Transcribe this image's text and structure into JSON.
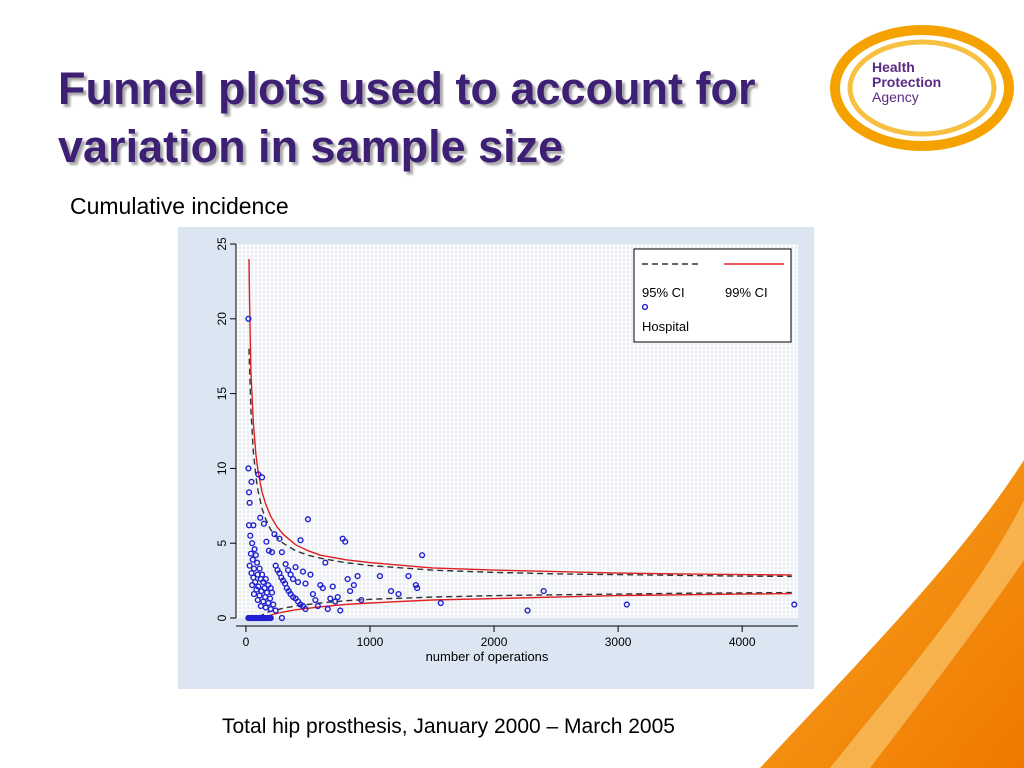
{
  "slide": {
    "title": "Funnel plots used to account for variation in sample size",
    "subtitle": "Cumulative incidence",
    "caption": "Total hip prosthesis, January 2000 – March 2005"
  },
  "logo": {
    "line1": "Health",
    "line2": "Protection",
    "line3": "Agency"
  },
  "colors": {
    "title": "#3d1f73",
    "panel": "#dce6f2",
    "accent_orange": "#f28c00",
    "ci99": "#e02020",
    "ci95": "#333333",
    "hospital": "#2020d0"
  },
  "chart_data": {
    "type": "scatter",
    "title": "",
    "xlabel": "number of operations",
    "ylabel": "",
    "xlim": [
      -80,
      4450
    ],
    "ylim": [
      0,
      25
    ],
    "xticks": [
      0,
      1000,
      2000,
      3000,
      4000
    ],
    "yticks": [
      0,
      5,
      10,
      15,
      20,
      25
    ],
    "grid": true,
    "legend": {
      "placement": "top-right",
      "entries": [
        {
          "label": "95% CI",
          "style": "dashed",
          "color": "#333333"
        },
        {
          "label": "99% CI",
          "style": "solid",
          "color": "#e02020"
        },
        {
          "label": "Hospital",
          "style": "point",
          "color": "#2020d0"
        }
      ]
    },
    "reference_rate": 2.2,
    "series": [
      {
        "name": "95% CI",
        "style": "dashed",
        "upper": [
          [
            25,
            18.0
          ],
          [
            40,
            13.9
          ],
          [
            60,
            11.1
          ],
          [
            80,
            9.5
          ],
          [
            100,
            8.4
          ],
          [
            130,
            7.3
          ],
          [
            160,
            6.6
          ],
          [
            200,
            5.9
          ],
          [
            250,
            5.4
          ],
          [
            300,
            5.0
          ],
          [
            400,
            4.5
          ],
          [
            500,
            4.2
          ],
          [
            600,
            4.0
          ],
          [
            800,
            3.7
          ],
          [
            1000,
            3.5
          ],
          [
            1500,
            3.2
          ],
          [
            2000,
            3.05
          ],
          [
            2500,
            2.95
          ],
          [
            3000,
            2.9
          ],
          [
            3500,
            2.85
          ],
          [
            4000,
            2.8
          ],
          [
            4400,
            2.78
          ]
        ],
        "lower": [
          [
            100,
            0.1
          ],
          [
            130,
            0.2
          ],
          [
            160,
            0.35
          ],
          [
            200,
            0.45
          ],
          [
            250,
            0.55
          ],
          [
            300,
            0.65
          ],
          [
            400,
            0.8
          ],
          [
            500,
            0.9
          ],
          [
            600,
            1.0
          ],
          [
            800,
            1.15
          ],
          [
            1000,
            1.25
          ],
          [
            1500,
            1.4
          ],
          [
            2000,
            1.5
          ],
          [
            2500,
            1.55
          ],
          [
            3000,
            1.6
          ],
          [
            3500,
            1.65
          ],
          [
            4000,
            1.68
          ],
          [
            4400,
            1.7
          ]
        ]
      },
      {
        "name": "99% CI",
        "style": "solid",
        "upper": [
          [
            25,
            24.0
          ],
          [
            30,
            21.0
          ],
          [
            40,
            16.5
          ],
          [
            60,
            13.0
          ],
          [
            80,
            11.0
          ],
          [
            100,
            9.7
          ],
          [
            130,
            8.4
          ],
          [
            160,
            7.6
          ],
          [
            200,
            6.8
          ],
          [
            250,
            6.1
          ],
          [
            300,
            5.6
          ],
          [
            400,
            4.9
          ],
          [
            500,
            4.5
          ],
          [
            600,
            4.2
          ],
          [
            800,
            3.9
          ],
          [
            1000,
            3.7
          ],
          [
            1500,
            3.35
          ],
          [
            2000,
            3.2
          ],
          [
            2500,
            3.1
          ],
          [
            3000,
            3.0
          ],
          [
            3500,
            2.95
          ],
          [
            4000,
            2.9
          ],
          [
            4400,
            2.88
          ]
        ],
        "lower": [
          [
            150,
            0.05
          ],
          [
            200,
            0.2
          ],
          [
            250,
            0.3
          ],
          [
            300,
            0.4
          ],
          [
            400,
            0.55
          ],
          [
            500,
            0.65
          ],
          [
            600,
            0.75
          ],
          [
            800,
            0.9
          ],
          [
            1000,
            1.0
          ],
          [
            1500,
            1.2
          ],
          [
            2000,
            1.3
          ],
          [
            2500,
            1.4
          ],
          [
            3000,
            1.5
          ],
          [
            3500,
            1.55
          ],
          [
            4000,
            1.6
          ],
          [
            4400,
            1.63
          ]
        ]
      },
      {
        "name": "Hospital",
        "style": "point",
        "points": [
          [
            20,
            20.0
          ],
          [
            20,
            10.0
          ],
          [
            25,
            8.4
          ],
          [
            30,
            7.7
          ],
          [
            45,
            9.1
          ],
          [
            60,
            6.2
          ],
          [
            25,
            6.2
          ],
          [
            35,
            5.5
          ],
          [
            50,
            5.0
          ],
          [
            70,
            4.6
          ],
          [
            40,
            4.3
          ],
          [
            80,
            4.2
          ],
          [
            55,
            3.9
          ],
          [
            90,
            3.7
          ],
          [
            30,
            3.5
          ],
          [
            65,
            3.3
          ],
          [
            110,
            3.3
          ],
          [
            45,
            3.0
          ],
          [
            95,
            2.9
          ],
          [
            130,
            2.9
          ],
          [
            60,
            2.7
          ],
          [
            120,
            2.6
          ],
          [
            160,
            2.6
          ],
          [
            75,
            2.4
          ],
          [
            140,
            2.4
          ],
          [
            180,
            2.2
          ],
          [
            50,
            2.2
          ],
          [
            100,
            2.1
          ],
          [
            150,
            2.0
          ],
          [
            200,
            2.0
          ],
          [
            85,
            1.9
          ],
          [
            125,
            1.8
          ],
          [
            170,
            1.7
          ],
          [
            210,
            1.7
          ],
          [
            65,
            1.6
          ],
          [
            110,
            1.5
          ],
          [
            155,
            1.4
          ],
          [
            195,
            1.3
          ],
          [
            95,
            1.2
          ],
          [
            140,
            1.1
          ],
          [
            180,
            1.0
          ],
          [
            220,
            0.9
          ],
          [
            120,
            0.8
          ],
          [
            160,
            0.7
          ],
          [
            200,
            0.6
          ],
          [
            240,
            0.5
          ],
          [
            100,
            9.6
          ],
          [
            130,
            9.4
          ],
          [
            115,
            6.7
          ],
          [
            145,
            6.3
          ],
          [
            165,
            5.1
          ],
          [
            185,
            4.5
          ],
          [
            210,
            4.4
          ],
          [
            230,
            5.6
          ],
          [
            240,
            3.5
          ],
          [
            255,
            3.2
          ],
          [
            270,
            3.0
          ],
          [
            285,
            2.7
          ],
          [
            300,
            2.5
          ],
          [
            315,
            2.3
          ],
          [
            330,
            2.0
          ],
          [
            345,
            1.8
          ],
          [
            360,
            1.6
          ],
          [
            380,
            1.4
          ],
          [
            400,
            1.3
          ],
          [
            420,
            1.1
          ],
          [
            440,
            0.9
          ],
          [
            460,
            0.8
          ],
          [
            480,
            0.6
          ],
          [
            270,
            5.3
          ],
          [
            290,
            4.4
          ],
          [
            320,
            3.6
          ],
          [
            340,
            3.2
          ],
          [
            360,
            2.9
          ],
          [
            380,
            2.6
          ],
          [
            400,
            3.4
          ],
          [
            420,
            2.4
          ],
          [
            440,
            5.2
          ],
          [
            460,
            3.1
          ],
          [
            480,
            2.3
          ],
          [
            500,
            6.6
          ],
          [
            520,
            2.9
          ],
          [
            540,
            1.6
          ],
          [
            560,
            1.2
          ],
          [
            580,
            0.8
          ],
          [
            600,
            2.2
          ],
          [
            620,
            2.0
          ],
          [
            640,
            3.7
          ],
          [
            660,
            0.6
          ],
          [
            680,
            1.3
          ],
          [
            700,
            2.1
          ],
          [
            720,
            1.1
          ],
          [
            740,
            1.4
          ],
          [
            760,
            0.5
          ],
          [
            780,
            5.3
          ],
          [
            800,
            5.1
          ],
          [
            820,
            2.6
          ],
          [
            840,
            1.8
          ],
          [
            870,
            2.2
          ],
          [
            900,
            2.8
          ],
          [
            930,
            1.2
          ],
          [
            1080,
            2.8
          ],
          [
            1170,
            1.8
          ],
          [
            1230,
            1.6
          ],
          [
            1310,
            2.8
          ],
          [
            1370,
            2.2
          ],
          [
            1380,
            2.0
          ],
          [
            1420,
            4.2
          ],
          [
            1570,
            1.0
          ],
          [
            2270,
            0.5
          ],
          [
            2400,
            1.8
          ],
          [
            3070,
            0.9
          ],
          [
            4420,
            0.9
          ],
          [
            20,
            0
          ],
          [
            30,
            0
          ],
          [
            40,
            0
          ],
          [
            50,
            0
          ],
          [
            60,
            0
          ],
          [
            70,
            0
          ],
          [
            80,
            0
          ],
          [
            90,
            0
          ],
          [
            100,
            0
          ],
          [
            110,
            0
          ],
          [
            120,
            0
          ],
          [
            130,
            0
          ],
          [
            140,
            0
          ],
          [
            150,
            0
          ],
          [
            160,
            0
          ],
          [
            170,
            0
          ],
          [
            180,
            0
          ],
          [
            190,
            0
          ],
          [
            200,
            0
          ],
          [
            290,
            0
          ]
        ]
      }
    ]
  }
}
